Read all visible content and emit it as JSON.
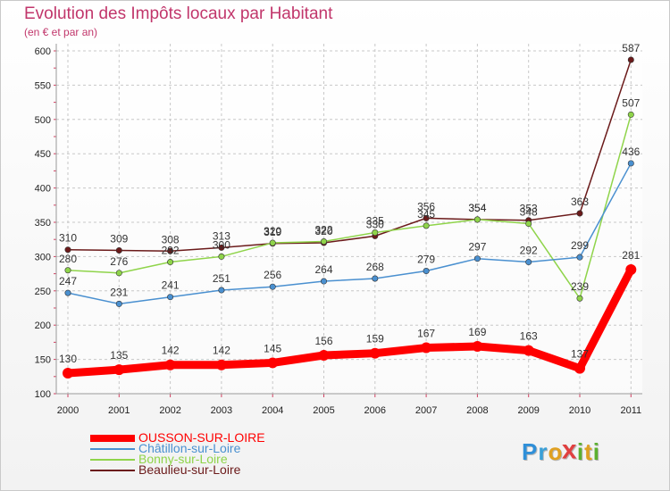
{
  "header": {
    "title": "Evolution des Impôts locaux par Habitant",
    "subtitle": "(en € et par an)"
  },
  "chart_data": {
    "type": "line",
    "title": "Evolution des Impôts locaux par Habitant",
    "subtitle": "(en € et par an)",
    "xlabel": "",
    "ylabel": "",
    "x": [
      "2000",
      "2001",
      "2002",
      "2003",
      "2004",
      "2005",
      "2006",
      "2007",
      "2008",
      "2009",
      "2010",
      "2011"
    ],
    "ylim": [
      100,
      600
    ],
    "yticks": [
      "100",
      "150",
      "200",
      "250",
      "300",
      "350",
      "400",
      "450",
      "500",
      "550",
      "600"
    ],
    "grid": true,
    "legend_position": "bottom-left",
    "series": [
      {
        "name": "OUSSON-SUR-LOIRE",
        "color": "#ff0000",
        "values": [
          130,
          135,
          142,
          142,
          145,
          156,
          159,
          167,
          169,
          163,
          137,
          281
        ],
        "labels": [
          "130",
          "135",
          "142",
          "142",
          "145",
          "156",
          "159",
          "167",
          "169",
          "163",
          "137",
          "281"
        ]
      },
      {
        "name": "Châtillon-sur-Loire",
        "color": "#4a90d0",
        "values": [
          247,
          231,
          241,
          251,
          256,
          264,
          268,
          279,
          297,
          292,
          299,
          436
        ],
        "labels": [
          "247",
          "231",
          "241",
          "251",
          "256",
          "264",
          "268",
          "279",
          "297",
          "292",
          "299",
          "436"
        ]
      },
      {
        "name": "Bonny-sur-Loire",
        "color": "#8fd44a",
        "values": [
          280,
          276,
          292,
          300,
          320,
          322,
          335,
          345,
          354,
          348,
          239,
          507
        ],
        "labels": [
          "280",
          "276",
          "292",
          "300",
          "320",
          "322",
          "335",
          "345",
          "354",
          "348",
          "239",
          "507"
        ]
      },
      {
        "name": "Beaulieu-sur-Loire",
        "color": "#6b1a1a",
        "values": [
          310,
          309,
          308,
          313,
          319,
          320,
          330,
          356,
          354,
          353,
          363,
          587
        ],
        "labels": [
          "310",
          "309",
          "308",
          "313",
          "319",
          "320",
          "330",
          "356",
          "354",
          "353",
          "363",
          "587"
        ]
      }
    ]
  },
  "brand": {
    "letters": [
      "P",
      "r",
      "o",
      "x",
      "i",
      "t",
      "i"
    ],
    "colors": [
      "#2f8fd8",
      "#3aa0d8",
      "#e0a020",
      "#e04040",
      "#5bb030",
      "#e0a020",
      "#5bb030"
    ]
  }
}
